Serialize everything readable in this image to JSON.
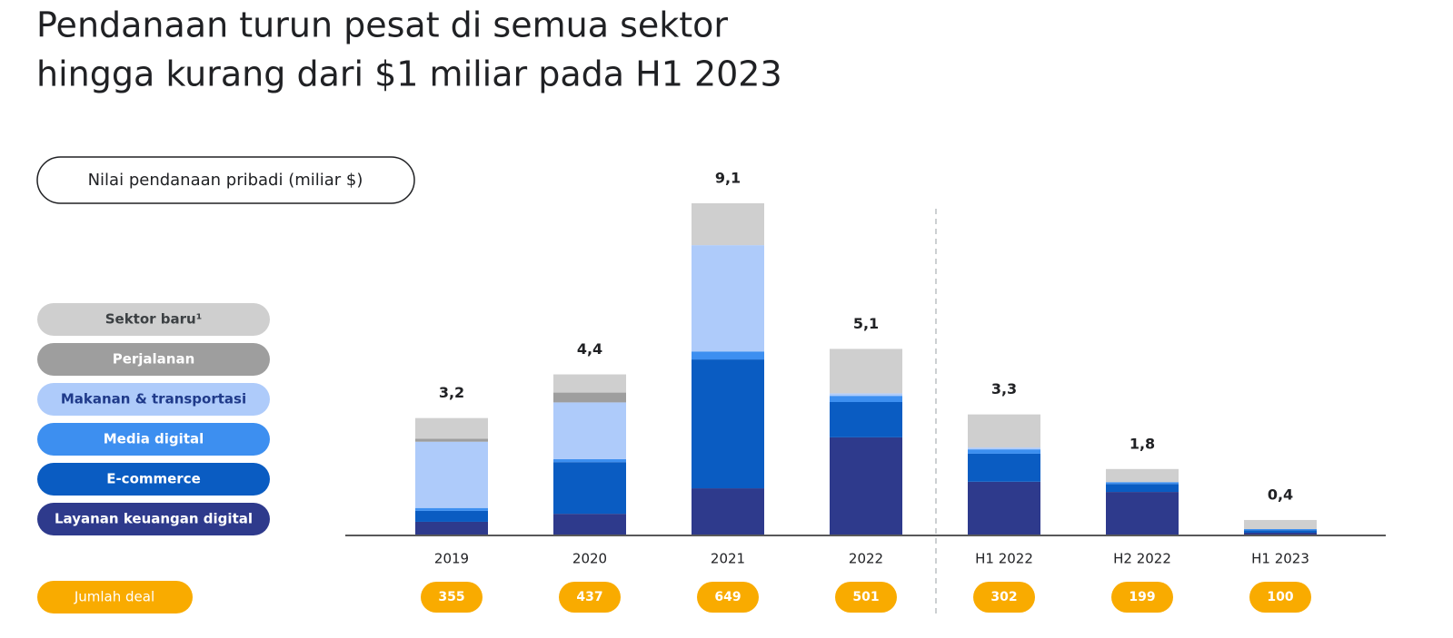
{
  "chart_data": {
    "type": "stacked_bar",
    "title_lines": [
      "Pendanaan turun pesat di semua sektor",
      "hingga kurang dari $1 miliar pada H1 2023"
    ],
    "y_label": "Nilai pendanaan pribadi (miliar $)",
    "categories": [
      "2019",
      "2020",
      "2021",
      "2022",
      "H1 2022",
      "H2 2022",
      "H1 2023"
    ],
    "ylim": [
      0,
      9.1
    ],
    "series": [
      {
        "name": "Layanan keuangan digital",
        "color": "#2e3a8c",
        "text_color": "#ffffff",
        "values": [
          0.35,
          0.57,
          1.27,
          2.67,
          1.45,
          1.17,
          0.05
        ]
      },
      {
        "name": "E-commerce",
        "color": "#0a5cc2",
        "text_color": "#ffffff",
        "values": [
          0.3,
          1.42,
          3.54,
          0.97,
          0.77,
          0.22,
          0.07
        ]
      },
      {
        "name": "Media digital",
        "color": "#3d8ff0",
        "text_color": "#ffffff",
        "values": [
          0.08,
          0.08,
          0.22,
          0.17,
          0.12,
          0.05,
          0.03
        ]
      },
      {
        "name": "Makanan & transportasi",
        "color": "#aecbfa",
        "text_color": "#1f3a8a",
        "values": [
          1.82,
          1.56,
          2.92,
          0.07,
          0.05,
          0,
          0
        ]
      },
      {
        "name": "Perjalanan",
        "color": "#9e9e9e",
        "text_color": "#ffffff",
        "values": [
          0.08,
          0.27,
          0,
          0,
          0,
          0,
          0
        ]
      },
      {
        "name": "Sektor baru¹",
        "color": "#cfcfcf",
        "text_color": "#3c4043",
        "values": [
          0.57,
          0.5,
          1.15,
          1.22,
          0.91,
          0.36,
          0.25
        ]
      }
    ],
    "totals": [
      3.2,
      4.4,
      9.1,
      5.1,
      3.3,
      1.8,
      0.4
    ],
    "total_labels": [
      "3,2",
      "4,4",
      "9,1",
      "5,1",
      "3,3",
      "1,8",
      "0,4"
    ],
    "deals_label": "Jumlah deal",
    "deal_counts": [
      355,
      437,
      649,
      501,
      302,
      199,
      100
    ],
    "deal_color": "#f9ab00"
  }
}
